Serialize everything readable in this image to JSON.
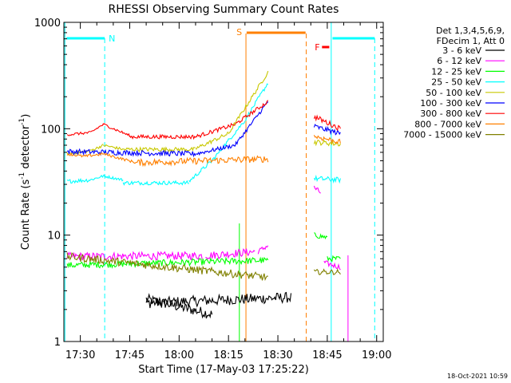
{
  "chart_data": {
    "type": "line",
    "title": "RHESSI Observing Summary Count Rates",
    "xlabel": "Start Time (17-May-03 17:25:22)",
    "ylabel_main": "Count Rate (s",
    "ylabel_sup1": "-1",
    "ylabel_mid": " detector",
    "ylabel_sup2": "-1",
    "ylabel_end": ")",
    "y_scale": "log",
    "ylim": [
      1,
      1000
    ],
    "xlim_minutes": [
      0,
      97
    ],
    "x_ticks": [
      {
        "label": "17:30",
        "min": 5
      },
      {
        "label": "17:45",
        "min": 20
      },
      {
        "label": "18:00",
        "min": 35
      },
      {
        "label": "18:15",
        "min": 50
      },
      {
        "label": "18:30",
        "min": 65
      },
      {
        "label": "18:45",
        "min": 80
      },
      {
        "label": "19:00",
        "min": 95
      }
    ],
    "y_ticks": [
      {
        "label": "1",
        "v": 1
      },
      {
        "label": "10",
        "v": 10
      },
      {
        "label": "100",
        "v": 100
      },
      {
        "label": "1000",
        "v": 1000
      }
    ],
    "legend_header": [
      "Det 1,3,4,5,6,9,",
      "FDecim 1, Att 0"
    ],
    "series": [
      {
        "name": "3 - 6 keV",
        "color": "#000000",
        "seg": [
          [
            25,
            2.5,
            45,
            1.8,
            40
          ],
          [
            25,
            2.3,
            69,
            2.6,
            40
          ]
        ]
      },
      {
        "name": "6 - 12 keV",
        "color": "#ff00ff",
        "seg": [
          [
            1,
            6.3,
            42,
            6.4,
            30
          ],
          [
            43,
            6.4,
            58,
            7.0,
            30
          ],
          [
            59,
            7.0,
            62,
            8.0,
            20
          ],
          [
            76,
            28,
            78,
            25,
            20
          ],
          [
            79,
            5.5,
            84,
            5.0,
            20
          ]
        ]
      },
      {
        "name": "12 - 25 keV",
        "color": "#00ff00",
        "seg": [
          [
            1,
            5.2,
            62,
            5.8,
            25
          ],
          [
            76,
            10,
            80,
            9.5,
            20
          ],
          [
            80,
            6.0,
            84,
            6.0,
            20
          ]
        ]
      },
      {
        "name": "25 - 50 keV",
        "color": "#00ffff",
        "seg": [
          [
            1,
            32,
            8,
            33,
            15
          ],
          [
            8,
            33,
            12,
            36,
            10
          ],
          [
            12,
            36,
            18,
            33,
            10
          ],
          [
            18,
            31,
            38,
            31,
            15
          ],
          [
            38,
            32,
            45,
            50,
            15
          ],
          [
            45,
            50,
            55,
            120,
            15
          ],
          [
            55,
            120,
            62,
            270,
            15
          ],
          [
            76,
            34,
            84,
            33,
            20
          ]
        ]
      },
      {
        "name": "50 - 100 keV",
        "color": "#c8c800",
        "seg": [
          [
            1,
            58,
            8,
            62,
            10
          ],
          [
            8,
            62,
            12,
            70,
            10
          ],
          [
            12,
            70,
            18,
            64,
            10
          ],
          [
            18,
            64,
            40,
            64,
            15
          ],
          [
            40,
            65,
            50,
            90,
            15
          ],
          [
            50,
            90,
            62,
            340,
            15
          ],
          [
            76,
            75,
            84,
            72,
            20
          ]
        ]
      },
      {
        "name": "100 - 300 keV",
        "color": "#0000ff",
        "seg": [
          [
            1,
            61,
            40,
            58,
            20
          ],
          [
            40,
            58,
            52,
            70,
            15
          ],
          [
            52,
            70,
            62,
            180,
            15
          ],
          [
            76,
            105,
            84,
            90,
            20
          ]
        ]
      },
      {
        "name": "300 - 800 keV",
        "color": "#ff0000",
        "seg": [
          [
            1,
            88,
            8,
            92,
            10
          ],
          [
            8,
            92,
            12,
            110,
            10
          ],
          [
            12,
            110,
            20,
            86,
            10
          ],
          [
            20,
            84,
            40,
            84,
            15
          ],
          [
            40,
            84,
            52,
            110,
            15
          ],
          [
            52,
            110,
            62,
            180,
            15
          ],
          [
            76,
            130,
            84,
            100,
            20
          ]
        ]
      },
      {
        "name": "800 - 7000 keV",
        "color": "#ff8000",
        "seg": [
          [
            1,
            58,
            6,
            55,
            10
          ],
          [
            6,
            55,
            12,
            58,
            10
          ],
          [
            12,
            58,
            22,
            48,
            10
          ],
          [
            22,
            48,
            62,
            52,
            25
          ],
          [
            76,
            85,
            84,
            75,
            20
          ]
        ]
      },
      {
        "name": "7000 - 15000 keV",
        "color": "#808000",
        "seg": [
          [
            1,
            6.3,
            62,
            4.0,
            30
          ],
          [
            76,
            4.5,
            84,
            4.5,
            20
          ]
        ]
      }
    ],
    "annotations": [
      {
        "text": "N",
        "color": "#00ffff"
      },
      {
        "text": "S",
        "color": "#ff8000"
      },
      {
        "text": "F",
        "color": "#ff0000"
      }
    ],
    "footer_date": "18-Oct-2021 10:59"
  }
}
